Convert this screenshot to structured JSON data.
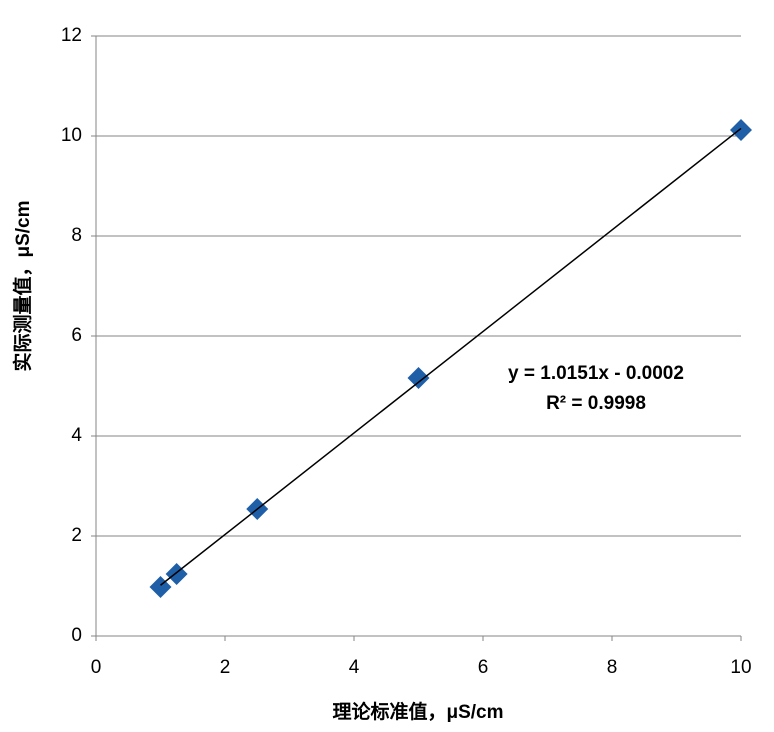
{
  "chart_data": {
    "type": "scatter",
    "x_label": "理论标准值，μS/cm",
    "y_label": "实际测量值，μS/cm",
    "x": [
      1,
      1.25,
      2.5,
      5,
      10
    ],
    "series": [
      {
        "color": "#1f5fa8",
        "values": [
          0.98,
          1.24,
          2.54,
          5.16,
          10.12
        ]
      }
    ],
    "trendline": {
      "x": [
        1,
        10
      ],
      "y": [
        1.0149,
        10.1508
      ],
      "color": "#000000"
    },
    "annotations": [
      "y = 1.0151x - 0.0002",
      "R² = 0.9998"
    ],
    "xlim": [
      0,
      10
    ],
    "xticks": [
      0,
      2,
      4,
      6,
      8,
      10
    ],
    "ylim": [
      0,
      12
    ],
    "yticks": [
      0,
      2,
      4,
      6,
      8,
      10,
      12
    ],
    "grid": true
  }
}
